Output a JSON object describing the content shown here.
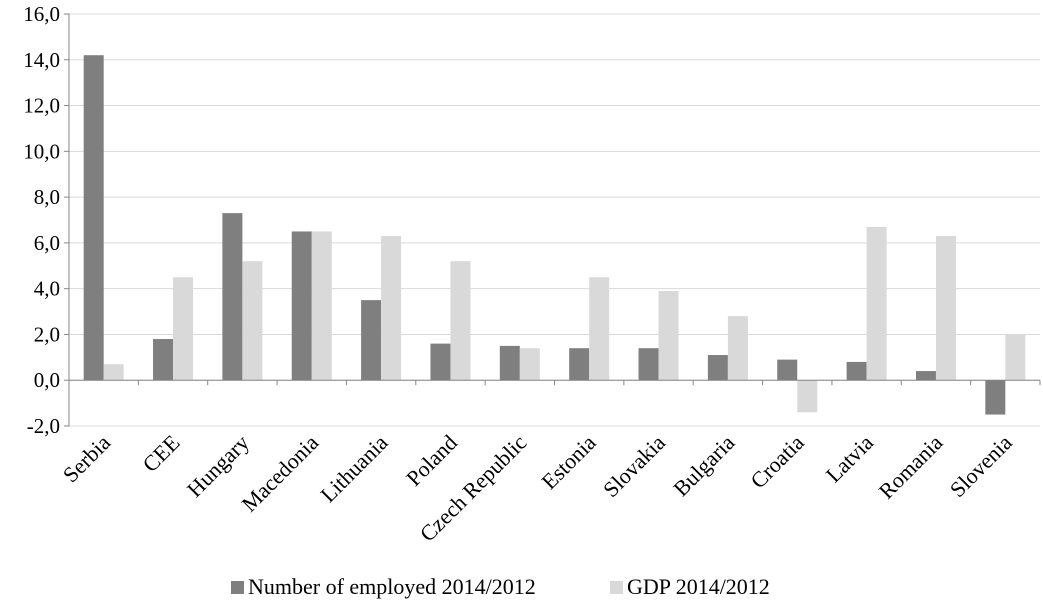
{
  "colors": {
    "employed": "#7f7f7f",
    "gdp": "#d9d9d9",
    "grid": "#d9d9d9",
    "axis": "#868686"
  },
  "chart_data": {
    "type": "bar",
    "categories": [
      "Serbia",
      "CEE",
      "Hungary",
      "Macedonia",
      "Lithuania",
      "Poland",
      "Czech Republic",
      "Estonia",
      "Slovakia",
      "Bulgaria",
      "Croatia",
      "Latvia",
      "Romania",
      "Slovenia"
    ],
    "series": [
      {
        "name": "Number of employed 2014/2012",
        "values": [
          14.2,
          1.8,
          7.3,
          6.5,
          3.5,
          1.6,
          1.5,
          1.4,
          1.4,
          1.1,
          0.9,
          0.8,
          0.4,
          -1.5
        ]
      },
      {
        "name": "GDP 2014/2012",
        "values": [
          0.7,
          4.5,
          5.2,
          6.5,
          6.3,
          5.2,
          1.4,
          4.5,
          3.9,
          2.8,
          -1.4,
          6.7,
          6.3,
          2.0
        ]
      }
    ],
    "yticks": [
      "-2,0",
      "0,0",
      "2,0",
      "4,0",
      "6,0",
      "8,0",
      "10,0",
      "12,0",
      "14,0",
      "16,0"
    ],
    "ylim": [
      -2,
      16
    ],
    "grid": true,
    "legend_position": "bottom"
  }
}
